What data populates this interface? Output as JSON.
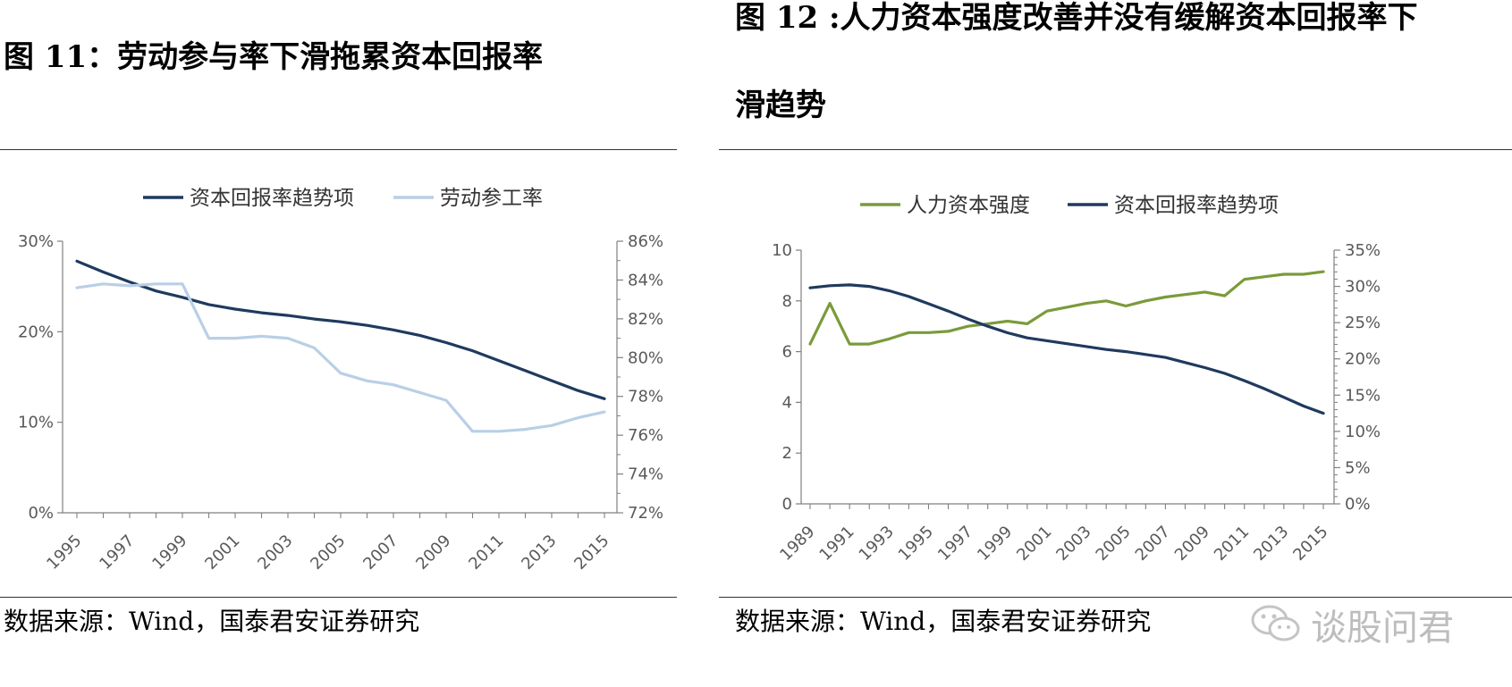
{
  "figures": [
    {
      "title": "图 11：劳动参与率下滑拖累资本回报率",
      "source": "数据来源：Wind，国泰君安证券研究"
    },
    {
      "title_line1": "图 12 :人力资本强度改善并没有缓解资本回报率下",
      "title_line2": "滑趋势",
      "source": "数据来源：Wind，国泰君安证券研究"
    }
  ],
  "watermark": "谈股问君",
  "colors": {
    "navy": "#1f3a5f",
    "lightblue": "#b9cfe6",
    "green": "#7a9b3a",
    "axis": "#808080"
  },
  "chart_data": [
    {
      "type": "line",
      "x_ticks": [
        "1995",
        "1997",
        "1999",
        "2001",
        "2003",
        "2005",
        "2007",
        "2009",
        "2011",
        "2013",
        "2015"
      ],
      "y_left_ticks": [
        "0%",
        "10%",
        "20%",
        "30%"
      ],
      "y_left_lim": [
        0,
        30
      ],
      "y_right_ticks": [
        "72%",
        "74%",
        "76%",
        "78%",
        "80%",
        "82%",
        "84%",
        "86%"
      ],
      "y_right_lim": [
        72,
        86
      ],
      "legend_position": "top",
      "grid": false,
      "series": [
        {
          "name": "资本回报率趋势项",
          "axis": "left",
          "color": "#1f3a5f",
          "x": [
            1995,
            1996,
            1997,
            1998,
            1999,
            2000,
            2001,
            2002,
            2003,
            2004,
            2005,
            2006,
            2007,
            2008,
            2009,
            2010,
            2011,
            2012,
            2013,
            2014,
            2015
          ],
          "values": [
            27.8,
            26.6,
            25.5,
            24.5,
            23.8,
            23.0,
            22.5,
            22.1,
            21.8,
            21.4,
            21.1,
            20.7,
            20.2,
            19.6,
            18.8,
            17.9,
            16.8,
            15.7,
            14.6,
            13.5,
            12.6
          ]
        },
        {
          "name": "劳动参工率",
          "axis": "right",
          "color": "#b9cfe6",
          "x": [
            1995,
            1996,
            1997,
            1998,
            1999,
            2000,
            2001,
            2002,
            2003,
            2004,
            2005,
            2006,
            2007,
            2008,
            2009,
            2010,
            2011,
            2012,
            2013,
            2014,
            2015
          ],
          "values": [
            83.6,
            83.8,
            83.7,
            83.8,
            83.8,
            81.0,
            81.0,
            81.1,
            81.0,
            80.5,
            79.2,
            78.8,
            78.6,
            78.2,
            77.8,
            76.2,
            76.2,
            76.3,
            76.5,
            76.9,
            77.2
          ]
        }
      ]
    },
    {
      "type": "line",
      "x_ticks": [
        "1989",
        "1991",
        "1993",
        "1995",
        "1997",
        "1999",
        "2001",
        "2003",
        "2005",
        "2007",
        "2009",
        "2011",
        "2013",
        "2015"
      ],
      "y_left_ticks": [
        "0",
        "2",
        "4",
        "6",
        "8",
        "10"
      ],
      "y_left_lim": [
        0,
        10
      ],
      "y_right_ticks": [
        "0%",
        "5%",
        "10%",
        "15%",
        "20%",
        "25%",
        "30%",
        "35%"
      ],
      "y_right_lim": [
        0,
        35
      ],
      "legend_position": "top",
      "grid": false,
      "series": [
        {
          "name": "人力资本强度",
          "axis": "left",
          "color": "#7a9b3a",
          "x": [
            1989,
            1990,
            1991,
            1992,
            1993,
            1994,
            1995,
            1996,
            1997,
            1998,
            1999,
            2000,
            2001,
            2002,
            2003,
            2004,
            2005,
            2006,
            2007,
            2008,
            2009,
            2010,
            2011,
            2012,
            2013,
            2014,
            2015
          ],
          "values": [
            6.3,
            7.9,
            6.3,
            6.3,
            6.5,
            6.75,
            6.75,
            6.8,
            7.0,
            7.1,
            7.2,
            7.1,
            7.6,
            7.75,
            7.9,
            8.0,
            7.8,
            8.0,
            8.15,
            8.25,
            8.35,
            8.2,
            8.85,
            8.95,
            9.05,
            9.05,
            9.15
          ]
        },
        {
          "name": "资本回报率趋势项",
          "axis": "right",
          "color": "#1f3a5f",
          "x": [
            1989,
            1990,
            1991,
            1992,
            1993,
            1994,
            1995,
            1996,
            1997,
            1998,
            1999,
            2000,
            2001,
            2002,
            2003,
            2004,
            2005,
            2006,
            2007,
            2008,
            2009,
            2010,
            2011,
            2012,
            2013,
            2014,
            2015
          ],
          "values": [
            29.8,
            30.1,
            30.2,
            30.0,
            29.4,
            28.6,
            27.6,
            26.6,
            25.5,
            24.5,
            23.6,
            22.9,
            22.5,
            22.1,
            21.7,
            21.3,
            21.0,
            20.6,
            20.2,
            19.5,
            18.8,
            18.0,
            17.0,
            15.9,
            14.7,
            13.5,
            12.5
          ]
        }
      ]
    }
  ]
}
